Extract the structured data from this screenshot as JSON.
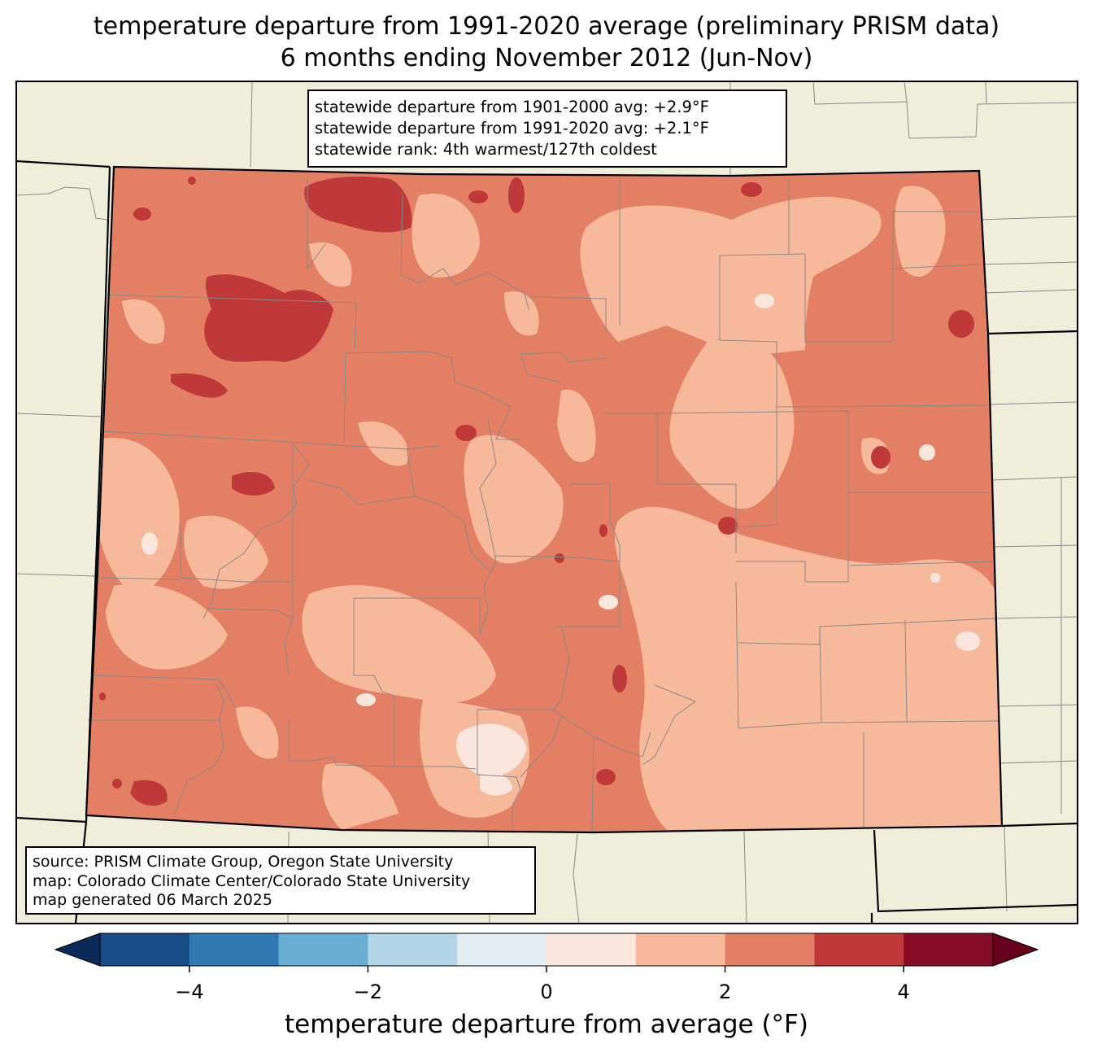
{
  "title": {
    "line1": "temperature departure from 1991-2020 average (preliminary PRISM data)",
    "line2": "6 months ending November 2012 (Jun-Nov)"
  },
  "stats_box": {
    "line1": "statewide departure from 1901-2000 avg: +2.9°F",
    "line2": "statewide departure from 1991-2020 avg: +2.1°F",
    "line3": "statewide rank: 4th warmest/127th coldest"
  },
  "source_box": {
    "line1": "source: PRISM Climate Group, Oregon State University",
    "line2": "map: Colorado Climate Center/Colorado State University",
    "line3": "map generated 06 March 2025"
  },
  "colorbar": {
    "title": "temperature departure from average (°F)",
    "ticks": [
      {
        "value": -4,
        "label": "−4"
      },
      {
        "value": -2,
        "label": "−2"
      },
      {
        "value": 0,
        "label": "0"
      },
      {
        "value": 2,
        "label": "2"
      },
      {
        "value": 4,
        "label": "4"
      }
    ],
    "range": [
      -5,
      5
    ],
    "colors": [
      "#164b87",
      "#2f79b5",
      "#6aaed4",
      "#b2d5e8",
      "#e3ecf3",
      "#fae6dc",
      "#f6b99b",
      "#e27f65",
      "#c0393a",
      "#860b26"
    ],
    "under_color": "#0b2a58",
    "over_color": "#65001d"
  },
  "map_colors": {
    "background": "#efeedb",
    "boundary": "#888888",
    "state_border": "#000000"
  }
}
